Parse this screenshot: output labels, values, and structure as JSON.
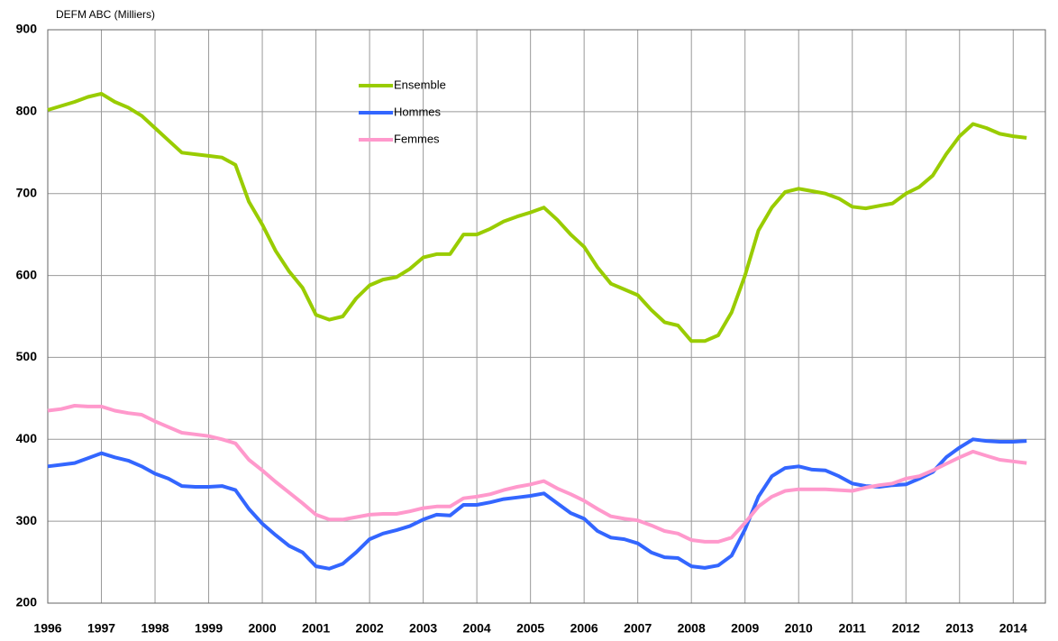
{
  "chart_data": {
    "type": "line",
    "y_label": "DEFM ABC (Milliers)",
    "xlim": [
      1996,
      2014.6
    ],
    "ylim": [
      200,
      900
    ],
    "xticks": [
      1996,
      1997,
      1998,
      1999,
      2000,
      2001,
      2002,
      2003,
      2004,
      2005,
      2006,
      2007,
      2008,
      2009,
      2010,
      2011,
      2012,
      2013,
      2014
    ],
    "yticks": [
      200,
      300,
      400,
      500,
      600,
      700,
      800,
      900
    ],
    "grid": true,
    "x": [
      1996,
      1996.25,
      1996.5,
      1996.75,
      1997,
      1997.25,
      1997.5,
      1997.75,
      1998,
      1998.25,
      1998.5,
      1998.75,
      1999,
      1999.25,
      1999.5,
      1999.75,
      2000,
      2000.25,
      2000.5,
      2000.75,
      2001,
      2001.25,
      2001.5,
      2001.75,
      2002,
      2002.25,
      2002.5,
      2002.75,
      2003,
      2003.25,
      2003.5,
      2003.75,
      2004,
      2004.25,
      2004.5,
      2004.75,
      2005,
      2005.25,
      2005.5,
      2005.75,
      2006,
      2006.25,
      2006.5,
      2006.75,
      2007,
      2007.25,
      2007.5,
      2007.75,
      2008,
      2008.25,
      2008.5,
      2008.75,
      2009,
      2009.25,
      2009.5,
      2009.75,
      2010,
      2010.25,
      2010.5,
      2010.75,
      2011,
      2011.25,
      2011.5,
      2011.75,
      2012,
      2012.25,
      2012.5,
      2012.75,
      2013,
      2013.25,
      2013.5,
      2013.75,
      2014,
      2014.25
    ],
    "series": [
      {
        "name": "Ensemble",
        "color": "#99cc00",
        "values": [
          802,
          807,
          812,
          818,
          822,
          812,
          805,
          795,
          780,
          765,
          750,
          748,
          746,
          744,
          735,
          690,
          662,
          630,
          605,
          585,
          552,
          546,
          550,
          572,
          588,
          595,
          598,
          608,
          622,
          626,
          626,
          650,
          650,
          657,
          666,
          672,
          677,
          683,
          668,
          650,
          635,
          610,
          590,
          583,
          576,
          558,
          543,
          539,
          520,
          520,
          527,
          555,
          600,
          655,
          683,
          702,
          706,
          703,
          700,
          694,
          684,
          682,
          685,
          688,
          700,
          708,
          722,
          748,
          770,
          785,
          780,
          773,
          770,
          768
        ]
      },
      {
        "name": "Hommes",
        "color": "#3366ff",
        "values": [
          367,
          369,
          371,
          377,
          383,
          378,
          374,
          367,
          358,
          352,
          343,
          342,
          342,
          343,
          338,
          315,
          297,
          283,
          270,
          262,
          245,
          242,
          248,
          262,
          278,
          285,
          289,
          294,
          302,
          308,
          307,
          320,
          320,
          323,
          327,
          329,
          331,
          334,
          322,
          310,
          303,
          288,
          280,
          278,
          273,
          262,
          256,
          255,
          245,
          243,
          246,
          258,
          290,
          330,
          355,
          365,
          367,
          363,
          362,
          355,
          346,
          343,
          342,
          344,
          345,
          352,
          360,
          378,
          390,
          400,
          398,
          397,
          397,
          398
        ]
      },
      {
        "name": "Femmes",
        "color": "#ff99cc",
        "values": [
          435,
          437,
          441,
          440,
          440,
          435,
          432,
          430,
          422,
          415,
          408,
          406,
          404,
          400,
          395,
          375,
          362,
          348,
          335,
          322,
          308,
          302,
          302,
          305,
          308,
          309,
          309,
          312,
          316,
          318,
          318,
          328,
          330,
          333,
          338,
          342,
          345,
          349,
          340,
          333,
          325,
          315,
          306,
          303,
          301,
          295,
          288,
          285,
          277,
          275,
          275,
          280,
          298,
          318,
          330,
          337,
          339,
          339,
          339,
          338,
          337,
          341,
          344,
          346,
          352,
          355,
          362,
          370,
          378,
          385,
          380,
          375,
          373,
          371
        ]
      }
    ]
  }
}
